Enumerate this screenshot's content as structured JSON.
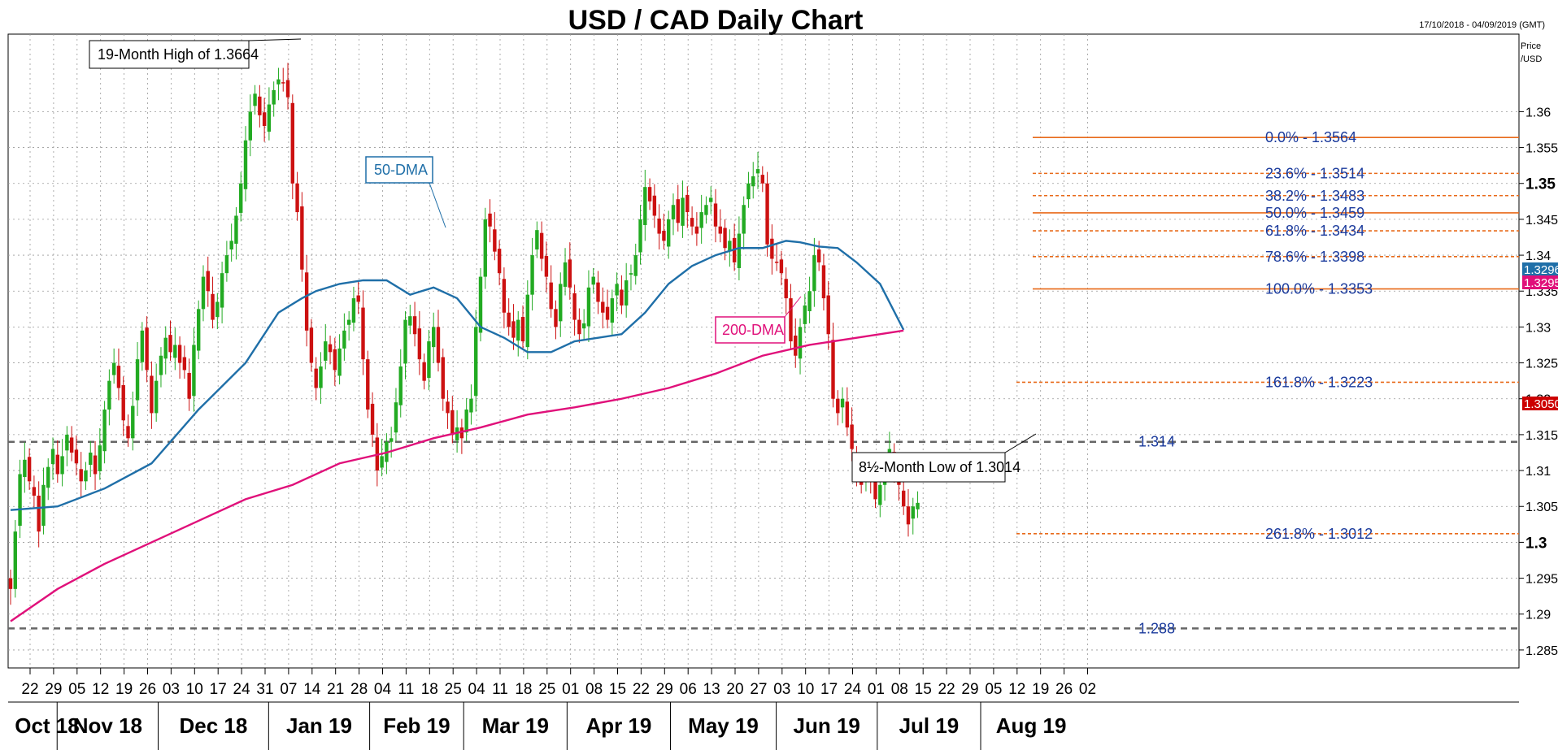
{
  "chart_data": {
    "type": "candlestick",
    "title": "USD / CAD Daily Chart",
    "date_range": "17/10/2018 - 04/09/2019 (GMT)",
    "y_axis_title": [
      "Price",
      "/USD"
    ],
    "ylim": [
      1.2825,
      1.3708
    ],
    "y_ticks": [
      "1.36",
      "1.355",
      "1.35",
      "1.345",
      "1.34",
      "1.335",
      "1.33",
      "1.325",
      "1.32",
      "1.315",
      "1.31",
      "1.305",
      "1.3",
      "1.295",
      "1.29",
      "1.285"
    ],
    "y_ticks_bold": [
      "1.35",
      "1.3"
    ],
    "x_day_ticks": [
      "22",
      "29",
      "05",
      "12",
      "19",
      "26",
      "03",
      "10",
      "17",
      "24",
      "31",
      "07",
      "14",
      "21",
      "28",
      "04",
      "11",
      "18",
      "25",
      "04",
      "11",
      "18",
      "25",
      "01",
      "08",
      "15",
      "22",
      "29",
      "06",
      "13",
      "20",
      "27",
      "03",
      "10",
      "17",
      "24",
      "01",
      "08",
      "15",
      "22",
      "29",
      "05",
      "12",
      "19",
      "26",
      "02"
    ],
    "x_months": [
      "Oct 18",
      "Nov 18",
      "Dec 18",
      "Jan 19",
      "Feb 19",
      "Mar 19",
      "Apr 19",
      "May 19",
      "Jun 19",
      "Jul 19",
      "Aug 19"
    ],
    "candle_closes": [
      1.2935,
      1.3015,
      1.3095,
      1.3115,
      1.3085,
      1.3065,
      1.3015,
      1.308,
      1.3105,
      1.313,
      1.3095,
      1.312,
      1.315,
      1.3125,
      1.311,
      1.3085,
      1.31,
      1.3125,
      1.3095,
      1.3135,
      1.3185,
      1.3225,
      1.325,
      1.3215,
      1.317,
      1.3145,
      1.319,
      1.3255,
      1.3295,
      1.324,
      1.318,
      1.3225,
      1.326,
      1.3285,
      1.3265,
      1.3275,
      1.325,
      1.324,
      1.32,
      1.3275,
      1.3325,
      1.337,
      1.335,
      1.331,
      1.3335,
      1.3375,
      1.34,
      1.342,
      1.3455,
      1.35,
      1.356,
      1.36,
      1.3625,
      1.3595,
      1.358,
      1.361,
      1.363,
      1.3645,
      1.364,
      1.362,
      1.35,
      1.346,
      1.338,
      1.3295,
      1.325,
      1.3215,
      1.3245,
      1.328,
      1.3265,
      1.324,
      1.327,
      1.3295,
      1.331,
      1.334,
      1.3335,
      1.3255,
      1.3185,
      1.315,
      1.31,
      1.312,
      1.314,
      1.3145,
      1.3195,
      1.3245,
      1.331,
      1.3315,
      1.329,
      1.3255,
      1.3225,
      1.328,
      1.33,
      1.325,
      1.32,
      1.318,
      1.315,
      1.316,
      1.3145,
      1.3185,
      1.32,
      1.33,
      1.337,
      1.345,
      1.344,
      1.3405,
      1.3375,
      1.332,
      1.33,
      1.3285,
      1.331,
      1.328,
      1.3345,
      1.34,
      1.3435,
      1.3395,
      1.337,
      1.3325,
      1.33,
      1.336,
      1.339,
      1.3355,
      1.331,
      1.329,
      1.3305,
      1.3355,
      1.337,
      1.3335,
      1.332,
      1.331,
      1.334,
      1.336,
      1.333,
      1.3365,
      1.3375,
      1.34,
      1.345,
      1.3495,
      1.3475,
      1.3455,
      1.343,
      1.342,
      1.345,
      1.347,
      1.3445,
      1.348,
      1.346,
      1.344,
      1.343,
      1.346,
      1.347,
      1.348,
      1.344,
      1.343,
      1.341,
      1.342,
      1.339,
      1.343,
      1.347,
      1.35,
      1.351,
      1.352,
      1.35,
      1.3415,
      1.3395,
      1.339,
      1.3375,
      1.334,
      1.328,
      1.326,
      1.33,
      1.333,
      1.335,
      1.34,
      1.339,
      1.334,
      1.329,
      1.32,
      1.318,
      1.32,
      1.316,
      1.313,
      1.31,
      1.308,
      1.3105,
      1.309,
      1.306,
      1.308,
      1.3105,
      1.313,
      1.31,
      1.308,
      1.305,
      1.3025,
      1.305,
      1.3055
    ],
    "series": [
      {
        "name": "50-DMA",
        "color": "#1f6fa8",
        "x": [
          0,
          10,
          20,
          30,
          40,
          50,
          57,
          62,
          65,
          70,
          75,
          80,
          85,
          90,
          95,
          100,
          105,
          110,
          115,
          120,
          125,
          130,
          135,
          140,
          145,
          150,
          155,
          160,
          165,
          168,
          172,
          176,
          180,
          185,
          190
        ],
        "y": [
          1.3045,
          1.305,
          1.3075,
          1.311,
          1.3185,
          1.325,
          1.332,
          1.334,
          1.335,
          1.336,
          1.3365,
          1.3365,
          1.3345,
          1.3355,
          1.334,
          1.33,
          1.3285,
          1.3265,
          1.3265,
          1.328,
          1.3285,
          1.329,
          1.332,
          1.336,
          1.3385,
          1.34,
          1.341,
          1.341,
          1.342,
          1.3418,
          1.3412,
          1.341,
          1.339,
          1.336,
          1.3296
        ]
      },
      {
        "name": "200-DMA",
        "color": "#e0107a",
        "x": [
          0,
          10,
          20,
          30,
          40,
          50,
          60,
          70,
          80,
          90,
          100,
          110,
          120,
          130,
          140,
          150,
          160,
          170,
          180,
          190
        ],
        "y": [
          1.289,
          1.2935,
          1.297,
          1.3,
          1.303,
          1.306,
          1.308,
          1.311,
          1.3125,
          1.3145,
          1.316,
          1.3178,
          1.3188,
          1.32,
          1.3215,
          1.3235,
          1.326,
          1.3275,
          1.3285,
          1.3295
        ]
      }
    ],
    "fibonacci_retracements": [
      {
        "label": "0.0%",
        "value": "1.3564",
        "y": 1.3564
      },
      {
        "label": "23.6%",
        "value": "1.3514",
        "y": 1.3514
      },
      {
        "label": "38.2%",
        "value": "1.3483",
        "y": 1.3483
      },
      {
        "label": "50.0%",
        "value": "1.3459",
        "y": 1.3459
      },
      {
        "label": "61.8%",
        "value": "1.3434",
        "y": 1.3434
      },
      {
        "label": "78.6%",
        "value": "1.3398",
        "y": 1.3398
      },
      {
        "label": "100.0%",
        "value": "1.3353",
        "y": 1.3353
      },
      {
        "label": "161.8%",
        "value": "1.3223",
        "y": 1.3223
      },
      {
        "label": "261.8%",
        "value": "1.3012",
        "y": 1.3012
      }
    ],
    "horizontal_levels": [
      {
        "label": "1.314",
        "y": 1.314
      },
      {
        "label": "1.288",
        "y": 1.288
      }
    ],
    "annotations": [
      {
        "text": "19-Month High of 1.3664"
      },
      {
        "text": "50-DMA"
      },
      {
        "text": "200-DMA"
      },
      {
        "text": "8½-Month Low of 1.3014"
      }
    ],
    "price_tags": [
      {
        "text": "1.3296",
        "color": "#1f6fa8",
        "y": 1.3296
      },
      {
        "text": "1.3295",
        "color": "#e0107a",
        "y": 1.3295
      },
      {
        "text": "1.3050",
        "color": "#cc0000",
        "y": 1.305
      }
    ],
    "colors": {
      "up": "#22aa22",
      "down": "#cc1111",
      "fib": "#e86a1a",
      "grid": "#999999"
    },
    "grid": true
  }
}
